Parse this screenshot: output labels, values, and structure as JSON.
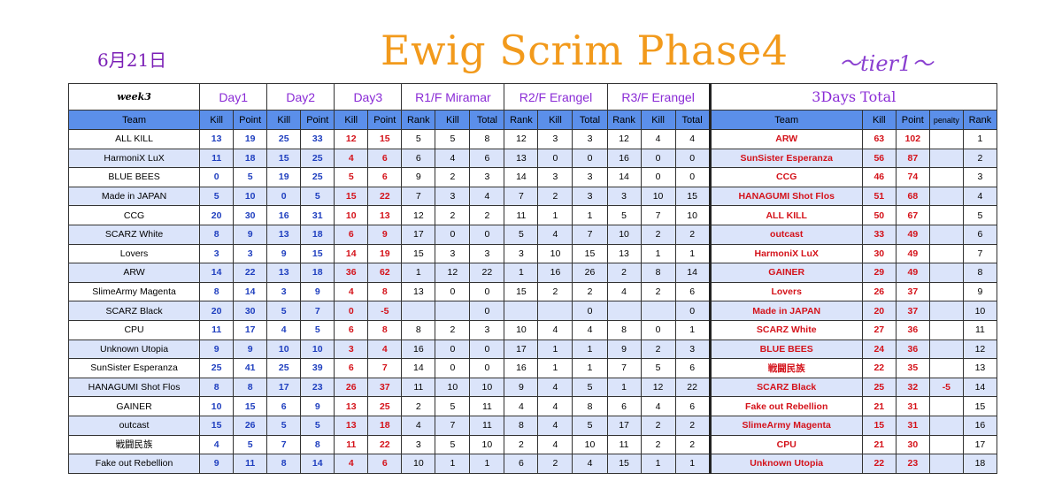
{
  "header": {
    "date": "6月21日",
    "title": "Ewig Scrim Phase4",
    "tier": "〜tier1〜"
  },
  "groups": {
    "week": "week3",
    "day1": "Day1",
    "day2": "Day2",
    "day3": "Day3",
    "r1": "R1/F Miramar",
    "r2": "R2/F Erangel",
    "r3": "R3/F Erangel",
    "total": "3Days Total"
  },
  "columns": {
    "team": "Team",
    "kill": "Kill",
    "point": "Point",
    "rank": "Rank",
    "total": "Total",
    "penalty": "penalty"
  },
  "rows": [
    {
      "team": "ALL KILL",
      "d1k": "13",
      "d1p": "19",
      "d2k": "25",
      "d2p": "33",
      "d3k": "12",
      "d3p": "15",
      "r1r": "5",
      "r1k": "5",
      "r1t": "8",
      "r2r": "12",
      "r2k": "3",
      "r2t": "3",
      "r3r": "12",
      "r3k": "4",
      "r3t": "4",
      "tt": "ARW",
      "tk": "63",
      "tp": "102",
      "pen": "",
      "rank": "1"
    },
    {
      "team": "HarmoniX LuX",
      "d1k": "11",
      "d1p": "18",
      "d2k": "15",
      "d2p": "25",
      "d3k": "4",
      "d3p": "6",
      "r1r": "6",
      "r1k": "4",
      "r1t": "6",
      "r2r": "13",
      "r2k": "0",
      "r2t": "0",
      "r3r": "16",
      "r3k": "0",
      "r3t": "0",
      "tt": "SunSister Esperanza",
      "tk": "56",
      "tp": "87",
      "pen": "",
      "rank": "2"
    },
    {
      "team": "BLUE BEES",
      "d1k": "0",
      "d1p": "5",
      "d2k": "19",
      "d2p": "25",
      "d3k": "5",
      "d3p": "6",
      "r1r": "9",
      "r1k": "2",
      "r1t": "3",
      "r2r": "14",
      "r2k": "3",
      "r2t": "3",
      "r3r": "14",
      "r3k": "0",
      "r3t": "0",
      "tt": "CCG",
      "tk": "46",
      "tp": "74",
      "pen": "",
      "rank": "3"
    },
    {
      "team": "Made in JAPAN",
      "d1k": "5",
      "d1p": "10",
      "d2k": "0",
      "d2p": "5",
      "d3k": "15",
      "d3p": "22",
      "r1r": "7",
      "r1k": "3",
      "r1t": "4",
      "r2r": "7",
      "r2k": "2",
      "r2t": "3",
      "r3r": "3",
      "r3k": "10",
      "r3t": "15",
      "tt": "HANAGUMI Shot Flos",
      "tk": "51",
      "tp": "68",
      "pen": "",
      "rank": "4"
    },
    {
      "team": "CCG",
      "d1k": "20",
      "d1p": "30",
      "d2k": "16",
      "d2p": "31",
      "d3k": "10",
      "d3p": "13",
      "r1r": "12",
      "r1k": "2",
      "r1t": "2",
      "r2r": "11",
      "r2k": "1",
      "r2t": "1",
      "r3r": "5",
      "r3k": "7",
      "r3t": "10",
      "tt": "ALL KILL",
      "tk": "50",
      "tp": "67",
      "pen": "",
      "rank": "5"
    },
    {
      "team": "SCARZ White",
      "d1k": "8",
      "d1p": "9",
      "d2k": "13",
      "d2p": "18",
      "d3k": "6",
      "d3p": "9",
      "r1r": "17",
      "r1k": "0",
      "r1t": "0",
      "r2r": "5",
      "r2k": "4",
      "r2t": "7",
      "r3r": "10",
      "r3k": "2",
      "r3t": "2",
      "tt": "outcast",
      "tk": "33",
      "tp": "49",
      "pen": "",
      "rank": "6"
    },
    {
      "team": "Lovers",
      "d1k": "3",
      "d1p": "3",
      "d2k": "9",
      "d2p": "15",
      "d3k": "14",
      "d3p": "19",
      "r1r": "15",
      "r1k": "3",
      "r1t": "3",
      "r2r": "3",
      "r2k": "10",
      "r2t": "15",
      "r3r": "13",
      "r3k": "1",
      "r3t": "1",
      "tt": "HarmoniX LuX",
      "tk": "30",
      "tp": "49",
      "pen": "",
      "rank": "7"
    },
    {
      "team": "ARW",
      "d1k": "14",
      "d1p": "22",
      "d2k": "13",
      "d2p": "18",
      "d3k": "36",
      "d3p": "62",
      "r1r": "1",
      "r1k": "12",
      "r1t": "22",
      "r2r": "1",
      "r2k": "16",
      "r2t": "26",
      "r3r": "2",
      "r3k": "8",
      "r3t": "14",
      "tt": "GAINER",
      "tk": "29",
      "tp": "49",
      "pen": "",
      "rank": "8"
    },
    {
      "team": "SlimeArmy Magenta",
      "d1k": "8",
      "d1p": "14",
      "d2k": "3",
      "d2p": "9",
      "d3k": "4",
      "d3p": "8",
      "r1r": "13",
      "r1k": "0",
      "r1t": "0",
      "r2r": "15",
      "r2k": "2",
      "r2t": "2",
      "r3r": "4",
      "r3k": "2",
      "r3t": "6",
      "tt": "Lovers",
      "tk": "26",
      "tp": "37",
      "pen": "",
      "rank": "9"
    },
    {
      "team": "SCARZ Black",
      "d1k": "20",
      "d1p": "30",
      "d2k": "5",
      "d2p": "7",
      "d3k": "0",
      "d3p": "-5",
      "r1r": "",
      "r1k": "",
      "r1t": "0",
      "r2r": "",
      "r2k": "",
      "r2t": "0",
      "r3r": "",
      "r3k": "",
      "r3t": "0",
      "tt": "Made in JAPAN",
      "tk": "20",
      "tp": "37",
      "pen": "",
      "rank": "10"
    },
    {
      "team": "CPU",
      "d1k": "11",
      "d1p": "17",
      "d2k": "4",
      "d2p": "5",
      "d3k": "6",
      "d3p": "8",
      "r1r": "8",
      "r1k": "2",
      "r1t": "3",
      "r2r": "10",
      "r2k": "4",
      "r2t": "4",
      "r3r": "8",
      "r3k": "0",
      "r3t": "1",
      "tt": "SCARZ White",
      "tk": "27",
      "tp": "36",
      "pen": "",
      "rank": "11"
    },
    {
      "team": "Unknown Utopia",
      "d1k": "9",
      "d1p": "9",
      "d2k": "10",
      "d2p": "10",
      "d3k": "3",
      "d3p": "4",
      "r1r": "16",
      "r1k": "0",
      "r1t": "0",
      "r2r": "17",
      "r2k": "1",
      "r2t": "1",
      "r3r": "9",
      "r3k": "2",
      "r3t": "3",
      "tt": "BLUE BEES",
      "tk": "24",
      "tp": "36",
      "pen": "",
      "rank": "12"
    },
    {
      "team": "SunSister Esperanza",
      "d1k": "25",
      "d1p": "41",
      "d2k": "25",
      "d2p": "39",
      "d3k": "6",
      "d3p": "7",
      "r1r": "14",
      "r1k": "0",
      "r1t": "0",
      "r2r": "16",
      "r2k": "1",
      "r2t": "1",
      "r3r": "7",
      "r3k": "5",
      "r3t": "6",
      "tt": "戦闘民族",
      "tk": "22",
      "tp": "35",
      "pen": "",
      "rank": "13"
    },
    {
      "team": "HANAGUMI Shot Flos",
      "d1k": "8",
      "d1p": "8",
      "d2k": "17",
      "d2p": "23",
      "d3k": "26",
      "d3p": "37",
      "r1r": "11",
      "r1k": "10",
      "r1t": "10",
      "r2r": "9",
      "r2k": "4",
      "r2t": "5",
      "r3r": "1",
      "r3k": "12",
      "r3t": "22",
      "tt": "SCARZ Black",
      "tk": "25",
      "tp": "32",
      "pen": "-5",
      "rank": "14"
    },
    {
      "team": "GAINER",
      "d1k": "10",
      "d1p": "15",
      "d2k": "6",
      "d2p": "9",
      "d3k": "13",
      "d3p": "25",
      "r1r": "2",
      "r1k": "5",
      "r1t": "11",
      "r2r": "4",
      "r2k": "4",
      "r2t": "8",
      "r3r": "6",
      "r3k": "4",
      "r3t": "6",
      "tt": "Fake out Rebellion",
      "tk": "21",
      "tp": "31",
      "pen": "",
      "rank": "15"
    },
    {
      "team": "outcast",
      "d1k": "15",
      "d1p": "26",
      "d2k": "5",
      "d2p": "5",
      "d3k": "13",
      "d3p": "18",
      "r1r": "4",
      "r1k": "7",
      "r1t": "11",
      "r2r": "8",
      "r2k": "4",
      "r2t": "5",
      "r3r": "17",
      "r3k": "2",
      "r3t": "2",
      "tt": "SlimeArmy Magenta",
      "tk": "15",
      "tp": "31",
      "pen": "",
      "rank": "16"
    },
    {
      "team": "戦闘民族",
      "d1k": "4",
      "d1p": "5",
      "d2k": "7",
      "d2p": "8",
      "d3k": "11",
      "d3p": "22",
      "r1r": "3",
      "r1k": "5",
      "r1t": "10",
      "r2r": "2",
      "r2k": "4",
      "r2t": "10",
      "r3r": "11",
      "r3k": "2",
      "r3t": "2",
      "tt": "CPU",
      "tk": "21",
      "tp": "30",
      "pen": "",
      "rank": "17"
    },
    {
      "team": "Fake out Rebellion",
      "d1k": "9",
      "d1p": "11",
      "d2k": "8",
      "d2p": "14",
      "d3k": "4",
      "d3p": "6",
      "r1r": "10",
      "r1k": "1",
      "r1t": "1",
      "r2r": "6",
      "r2k": "2",
      "r2t": "4",
      "r3r": "15",
      "r3k": "1",
      "r3t": "1",
      "tt": "Unknown Utopia",
      "tk": "22",
      "tp": "23",
      "pen": "",
      "rank": "18"
    }
  ],
  "colors": {
    "title": "#f29a1c",
    "date": "#7b1fb6",
    "header_purple": "#8a2bd6",
    "column_header_bg": "#5b8fea",
    "alt_row_bg": "#dbe4fa",
    "blue_value": "#1f3fbf",
    "red_value": "#d4121a"
  }
}
